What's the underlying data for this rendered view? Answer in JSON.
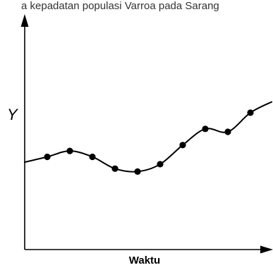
{
  "top_text": "a   kepadatan populasi Varroa pada Sarang",
  "chart_data": {
    "type": "line",
    "title": "",
    "xlabel": "Waktu",
    "ylabel": "Y",
    "grid": false,
    "legend": "none",
    "x": [
      1,
      2,
      3,
      4,
      5,
      6,
      7,
      8,
      9,
      10
    ],
    "series": [
      {
        "values": [
          6.3,
          6.7,
          6.3,
          5.5,
          5.3,
          5.8,
          7.1,
          8.2,
          8.0,
          9.3
        ]
      }
    ],
    "xlim": [
      0,
      11
    ],
    "ylim": [
      0,
      16
    ]
  },
  "colors": {
    "line": "#000000",
    "point": "#000000",
    "axis": "#000000"
  }
}
